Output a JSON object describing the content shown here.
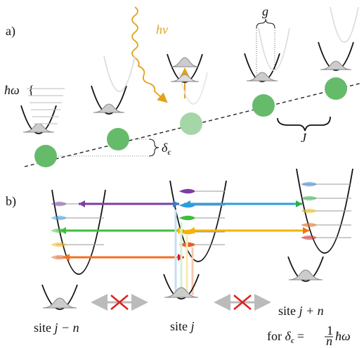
{
  "panel_a": {
    "label": "a)",
    "photon": "hν",
    "level_spacing": "ħω",
    "gap": "g",
    "coupling": "J",
    "offset": {
      "symbol": "δ",
      "subscript": "ϵ"
    }
  },
  "panel_b": {
    "label": "b)",
    "sites": [
      {
        "word": "site",
        "index": "j − n"
      },
      {
        "word": "site",
        "index": "j"
      },
      {
        "word": "site",
        "index": "j + n"
      }
    ],
    "condition": {
      "prefix": "for",
      "symbol": "δ",
      "subscript": "ϵ",
      "relation": "=",
      "numerator": "1",
      "denominator": "n",
      "suffix": "ħω"
    }
  }
}
